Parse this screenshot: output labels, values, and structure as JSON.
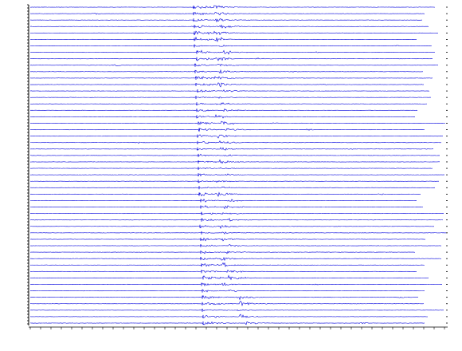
{
  "figure": {
    "type": "seismogram-section",
    "color": "#0000dd",
    "frame_color": "#000000"
  }
}
